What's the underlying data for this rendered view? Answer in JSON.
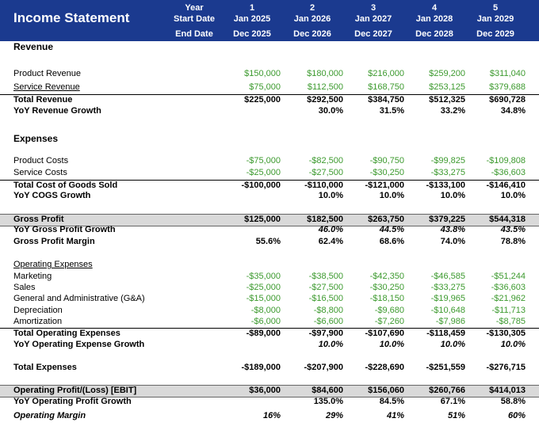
{
  "header": {
    "title": "Income Statement",
    "year_label": "Year",
    "start_label": "Start Date",
    "end_label": "End Date",
    "columns": [
      {
        "year": "1",
        "start": "Jan 2025",
        "end": "Dec 2025"
      },
      {
        "year": "2",
        "start": "Jan 2026",
        "end": "Dec 2026"
      },
      {
        "year": "3",
        "start": "Jan 2027",
        "end": "Dec 2027"
      },
      {
        "year": "4",
        "start": "Jan 2028",
        "end": "Dec 2028"
      },
      {
        "year": "5",
        "start": "Jan 2029",
        "end": "Dec 2029"
      }
    ]
  },
  "rows": [
    {
      "label": "Revenue"
    },
    {
      "label": "Product Revenue",
      "values": [
        "$150,000",
        "$180,000",
        "$216,000",
        "$259,200",
        "$311,040"
      ]
    },
    {
      "label": "Service Revenue",
      "values": [
        "$75,000",
        "$112,500",
        "$168,750",
        "$253,125",
        "$379,688"
      ]
    },
    {
      "label": "Total Revenue",
      "values": [
        "$225,000",
        "$292,500",
        "$384,750",
        "$512,325",
        "$690,728"
      ]
    },
    {
      "label": "YoY Revenue Growth",
      "values": [
        null,
        "30.0%",
        "31.5%",
        "33.2%",
        "34.8%"
      ]
    },
    {
      "label": "Expenses"
    },
    {
      "label": "Product Costs",
      "values": [
        "-$75,000",
        "-$82,500",
        "-$90,750",
        "-$99,825",
        "-$109,808"
      ]
    },
    {
      "label": "Service Costs",
      "values": [
        "-$25,000",
        "-$27,500",
        "-$30,250",
        "-$33,275",
        "-$36,603"
      ]
    },
    {
      "label": "Total Cost of Goods Sold",
      "values": [
        "-$100,000",
        "-$110,000",
        "-$121,000",
        "-$133,100",
        "-$146,410"
      ]
    },
    {
      "label": "YoY COGS Growth",
      "values": [
        null,
        "10.0%",
        "10.0%",
        "10.0%",
        "10.0%"
      ]
    },
    {
      "label": "Gross Profit",
      "values": [
        "$125,000",
        "$182,500",
        "$263,750",
        "$379,225",
        "$544,318"
      ]
    },
    {
      "label": "YoY Gross Profit Growth",
      "values": [
        null,
        "46.0%",
        "44.5%",
        "43.8%",
        "43.5%"
      ]
    },
    {
      "label": "Gross Profit Margin",
      "values": [
        "55.6%",
        "62.4%",
        "68.6%",
        "74.0%",
        "78.8%"
      ]
    },
    {
      "label": "Operating Expenses"
    },
    {
      "label": "Marketing",
      "values": [
        "-$35,000",
        "-$38,500",
        "-$42,350",
        "-$46,585",
        "-$51,244"
      ]
    },
    {
      "label": "Sales",
      "values": [
        "-$25,000",
        "-$27,500",
        "-$30,250",
        "-$33,275",
        "-$36,603"
      ]
    },
    {
      "label": "General and Administrative (G&A)",
      "values": [
        "-$15,000",
        "-$16,500",
        "-$18,150",
        "-$19,965",
        "-$21,962"
      ]
    },
    {
      "label": "Depreciation",
      "values": [
        "-$8,000",
        "-$8,800",
        "-$9,680",
        "-$10,648",
        "-$11,713"
      ]
    },
    {
      "label": "Amortization",
      "values": [
        "-$6,000",
        "-$6,600",
        "-$7,260",
        "-$7,986",
        "-$8,785"
      ]
    },
    {
      "label": "Total Operating Expenses",
      "values": [
        "-$89,000",
        "-$97,900",
        "-$107,690",
        "-$118,459",
        "-$130,305"
      ]
    },
    {
      "label": "YoY Operating Expense Growth",
      "values": [
        null,
        "10.0%",
        "10.0%",
        "10.0%",
        "10.0%"
      ]
    },
    {
      "label": "Total Expenses",
      "values": [
        "-$189,000",
        "-$207,900",
        "-$228,690",
        "-$251,559",
        "-$276,715"
      ]
    },
    {
      "label": "Operating Profit/(Loss) [EBIT]",
      "values": [
        "$36,000",
        "$84,600",
        "$156,060",
        "$260,766",
        "$414,013"
      ]
    },
    {
      "label": "YoY Operating Profit Growth",
      "values": [
        null,
        "135.0%",
        "84.5%",
        "67.1%",
        "58.8%"
      ]
    },
    {
      "label": "Operating Margin",
      "values": [
        "16%",
        "29%",
        "41%",
        "51%",
        "60%"
      ]
    }
  ]
}
